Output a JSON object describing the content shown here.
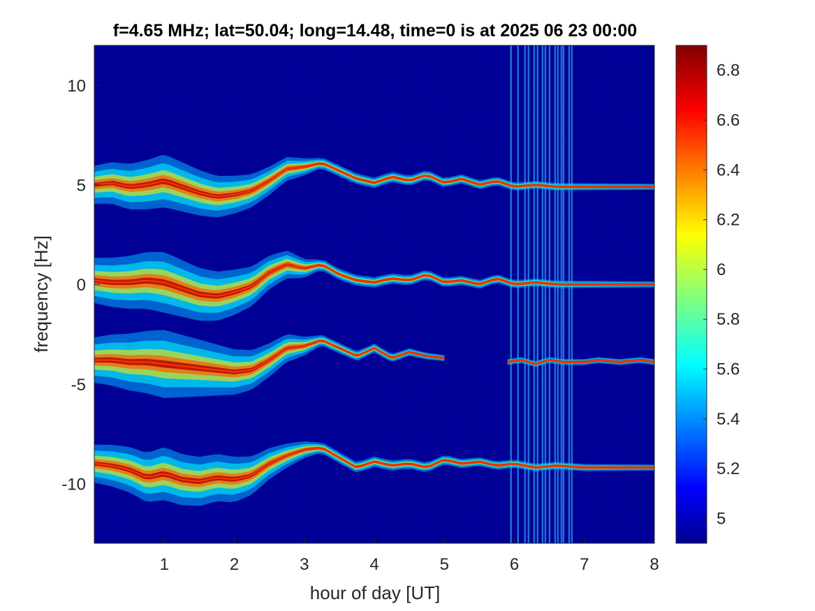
{
  "chart_data": {
    "type": "heatmap",
    "title": "f=4.65 MHz;  lat=50.04; long=14.48, time=0 is at 2025 06 23 00:00",
    "xlabel": "hour of day [UT]",
    "ylabel": "frequency [Hz]",
    "xlim": [
      0,
      8
    ],
    "ylim": [
      -13,
      12
    ],
    "xticks": [
      1,
      2,
      3,
      4,
      5,
      6,
      7,
      8
    ],
    "xtick_labels": [
      "1",
      "2",
      "3",
      "4",
      "5",
      "6",
      "7",
      "8"
    ],
    "yticks": [
      10,
      5,
      0,
      -5,
      -10
    ],
    "ytick_labels": [
      "10",
      "5",
      "0",
      "-5",
      "-10"
    ],
    "colorbar": {
      "colormap": "jet",
      "clim": [
        4.9,
        6.9
      ],
      "ticks": [
        6.8,
        6.6,
        6.4,
        6.2,
        6,
        5.8,
        5.6,
        5.4,
        5.2,
        5
      ],
      "tick_labels": [
        "6.8",
        "6.6",
        "6.4",
        "6.2",
        "6",
        "5.8",
        "5.6",
        "5.4",
        "5.2",
        "5"
      ]
    },
    "background_color": "#00008f",
    "traces": [
      {
        "points": [
          [
            0,
            5.0
          ],
          [
            0.25,
            5.1
          ],
          [
            0.5,
            4.9
          ],
          [
            0.75,
            5.0
          ],
          [
            1.0,
            5.2
          ],
          [
            1.25,
            4.9
          ],
          [
            1.5,
            4.6
          ],
          [
            1.75,
            4.4
          ],
          [
            2.0,
            4.5
          ],
          [
            2.25,
            4.7
          ],
          [
            2.5,
            5.2
          ],
          [
            2.75,
            5.8
          ],
          [
            3.0,
            5.9
          ],
          [
            3.25,
            6.1
          ],
          [
            3.5,
            5.7
          ],
          [
            3.75,
            5.3
          ],
          [
            4.0,
            5.1
          ],
          [
            4.25,
            5.4
          ],
          [
            4.5,
            5.2
          ],
          [
            4.75,
            5.5
          ],
          [
            5.0,
            5.1
          ],
          [
            5.25,
            5.3
          ],
          [
            5.5,
            5.0
          ],
          [
            5.75,
            5.2
          ],
          [
            6.0,
            4.9
          ],
          [
            6.3,
            5.0
          ],
          [
            6.6,
            4.9
          ],
          [
            7.0,
            4.9
          ],
          [
            7.5,
            4.9
          ],
          [
            8.0,
            4.9
          ]
        ],
        "spread": [
          [
            0,
            0.5
          ],
          [
            1.0,
            0.7
          ],
          [
            2.0,
            0.5
          ],
          [
            2.8,
            0.3
          ],
          [
            3.2,
            0.15
          ],
          [
            8.0,
            0.08
          ]
        ]
      },
      {
        "points": [
          [
            0,
            0.2
          ],
          [
            0.25,
            0.1
          ],
          [
            0.5,
            0.1
          ],
          [
            0.75,
            0.2
          ],
          [
            1.0,
            0.1
          ],
          [
            1.25,
            -0.2
          ],
          [
            1.5,
            -0.5
          ],
          [
            1.75,
            -0.6
          ],
          [
            2.0,
            -0.4
          ],
          [
            2.25,
            -0.1
          ],
          [
            2.5,
            0.6
          ],
          [
            2.75,
            1.0
          ],
          [
            3.0,
            0.8
          ],
          [
            3.25,
            1.0
          ],
          [
            3.5,
            0.5
          ],
          [
            3.75,
            0.2
          ],
          [
            4.0,
            0.1
          ],
          [
            4.25,
            0.3
          ],
          [
            4.5,
            0.2
          ],
          [
            4.75,
            0.5
          ],
          [
            5.0,
            0.1
          ],
          [
            5.25,
            0.2
          ],
          [
            5.5,
            0.0
          ],
          [
            5.75,
            0.3
          ],
          [
            6.0,
            0.0
          ],
          [
            6.3,
            0.1
          ],
          [
            6.6,
            0.0
          ],
          [
            7.0,
            0.0
          ],
          [
            7.5,
            0.0
          ],
          [
            8.0,
            0.0
          ]
        ],
        "spread": [
          [
            0,
            0.6
          ],
          [
            1.0,
            0.8
          ],
          [
            2.0,
            0.6
          ],
          [
            2.8,
            0.35
          ],
          [
            3.2,
            0.15
          ],
          [
            8.0,
            0.08
          ]
        ]
      },
      {
        "points": [
          [
            0,
            -3.8
          ],
          [
            0.25,
            -3.8
          ],
          [
            0.5,
            -3.9
          ],
          [
            0.75,
            -3.9
          ],
          [
            1.0,
            -4.0
          ],
          [
            1.25,
            -4.1
          ],
          [
            1.5,
            -4.2
          ],
          [
            1.75,
            -4.3
          ],
          [
            2.0,
            -4.4
          ],
          [
            2.25,
            -4.3
          ],
          [
            2.5,
            -3.8
          ],
          [
            2.75,
            -3.2
          ],
          [
            3.0,
            -3.1
          ],
          [
            3.25,
            -2.8
          ],
          [
            3.5,
            -3.2
          ],
          [
            3.75,
            -3.6
          ],
          [
            4.0,
            -3.2
          ],
          [
            4.25,
            -3.7
          ],
          [
            4.5,
            -3.4
          ],
          [
            4.75,
            -3.6
          ],
          [
            5.0,
            -3.7
          ]
        ],
        "spread": [
          [
            0,
            0.6
          ],
          [
            1.0,
            0.9
          ],
          [
            2.0,
            0.6
          ],
          [
            2.8,
            0.35
          ],
          [
            3.2,
            0.15
          ],
          [
            5.0,
            0.08
          ]
        ]
      },
      {
        "points": [
          [
            5.9,
            -3.9
          ],
          [
            6.1,
            -3.8
          ],
          [
            6.3,
            -4.0
          ],
          [
            6.5,
            -3.8
          ],
          [
            6.7,
            -3.9
          ],
          [
            7.0,
            -3.9
          ],
          [
            7.2,
            -3.8
          ],
          [
            7.5,
            -3.9
          ],
          [
            7.8,
            -3.8
          ],
          [
            8.0,
            -3.9
          ]
        ],
        "spread": [
          [
            5.9,
            0.08
          ],
          [
            8.0,
            0.08
          ]
        ]
      },
      {
        "points": [
          [
            0,
            -9.0
          ],
          [
            0.25,
            -9.1
          ],
          [
            0.5,
            -9.3
          ],
          [
            0.75,
            -9.7
          ],
          [
            1.0,
            -9.5
          ],
          [
            1.25,
            -9.8
          ],
          [
            1.5,
            -9.9
          ],
          [
            1.75,
            -9.7
          ],
          [
            2.0,
            -9.8
          ],
          [
            2.25,
            -9.6
          ],
          [
            2.5,
            -9.0
          ],
          [
            2.75,
            -8.6
          ],
          [
            3.0,
            -8.3
          ],
          [
            3.25,
            -8.2
          ],
          [
            3.5,
            -8.7
          ],
          [
            3.75,
            -9.2
          ],
          [
            4.0,
            -8.9
          ],
          [
            4.25,
            -9.1
          ],
          [
            4.5,
            -9.0
          ],
          [
            4.75,
            -9.2
          ],
          [
            5.0,
            -8.8
          ],
          [
            5.25,
            -9.0
          ],
          [
            5.5,
            -8.9
          ],
          [
            5.75,
            -9.1
          ],
          [
            6.0,
            -9.0
          ],
          [
            6.3,
            -9.2
          ],
          [
            6.6,
            -9.1
          ],
          [
            7.0,
            -9.2
          ],
          [
            7.5,
            -9.2
          ],
          [
            8.0,
            -9.2
          ]
        ],
        "spread": [
          [
            0,
            0.5
          ],
          [
            1.0,
            0.7
          ],
          [
            2.0,
            0.6
          ],
          [
            2.8,
            0.3
          ],
          [
            3.2,
            0.15
          ],
          [
            8.0,
            0.08
          ]
        ]
      }
    ],
    "vertical_streaks_hours": [
      5.95,
      6.05,
      6.15,
      6.2,
      6.28,
      6.33,
      6.4,
      6.44,
      6.5,
      6.58,
      6.62,
      6.67,
      6.7,
      6.78,
      6.82
    ]
  }
}
